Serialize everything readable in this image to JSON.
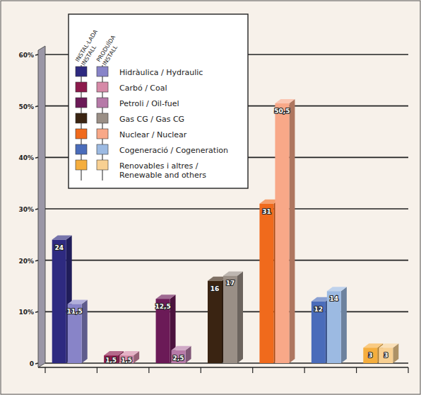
{
  "chart_data": {
    "type": "bar",
    "categories": [
      "Hidràulica / Hydraulic",
      "Carbó / Coal",
      "Petroli / Oil-fuel",
      "Gas CG / Gas CG",
      "Nuclear / Nuclear",
      "Cogeneració / Cogeneration",
      "Renovables i altres / Renewable and others"
    ],
    "series": [
      {
        "name": "INSTAL·LADA INSTALL",
        "colors": [
          "#2e2a80",
          "#8c1a4c",
          "#6b1a57",
          "#3a2412",
          "#f06a1c",
          "#4a6cba",
          "#f5ae3e"
        ],
        "values": [
          24,
          1.5,
          12.5,
          16,
          31,
          12,
          3
        ],
        "value_labels": [
          "24",
          "1,5",
          "12,5",
          "16",
          "31",
          "12",
          "3"
        ]
      },
      {
        "name": "PRODUÏDA INSTALL",
        "colors": [
          "#8884c8",
          "#d68aa8",
          "#b67aa8",
          "#9a8f86",
          "#f8a888",
          "#9cbae2",
          "#f8d092"
        ],
        "values": [
          11.5,
          1.5,
          2.5,
          17,
          50.5,
          14,
          3
        ],
        "value_labels": [
          "11,5",
          "1,5",
          "2,5",
          "17",
          "50,5",
          "14",
          "3"
        ]
      }
    ],
    "ylim": [
      0,
      60
    ],
    "yticks": [
      0,
      {
        "value": 10,
        "label": "10%"
      },
      {
        "value": 20,
        "label": "20%"
      },
      {
        "value": 30,
        "label": "30%"
      },
      {
        "value": 40,
        "label": "40%"
      },
      {
        "value": 50,
        "label": "50%"
      },
      {
        "value": 60,
        "label": "60%"
      }
    ],
    "grid": true,
    "legend": "top-left",
    "data_labels": true,
    "tick_labels": "y"
  }
}
